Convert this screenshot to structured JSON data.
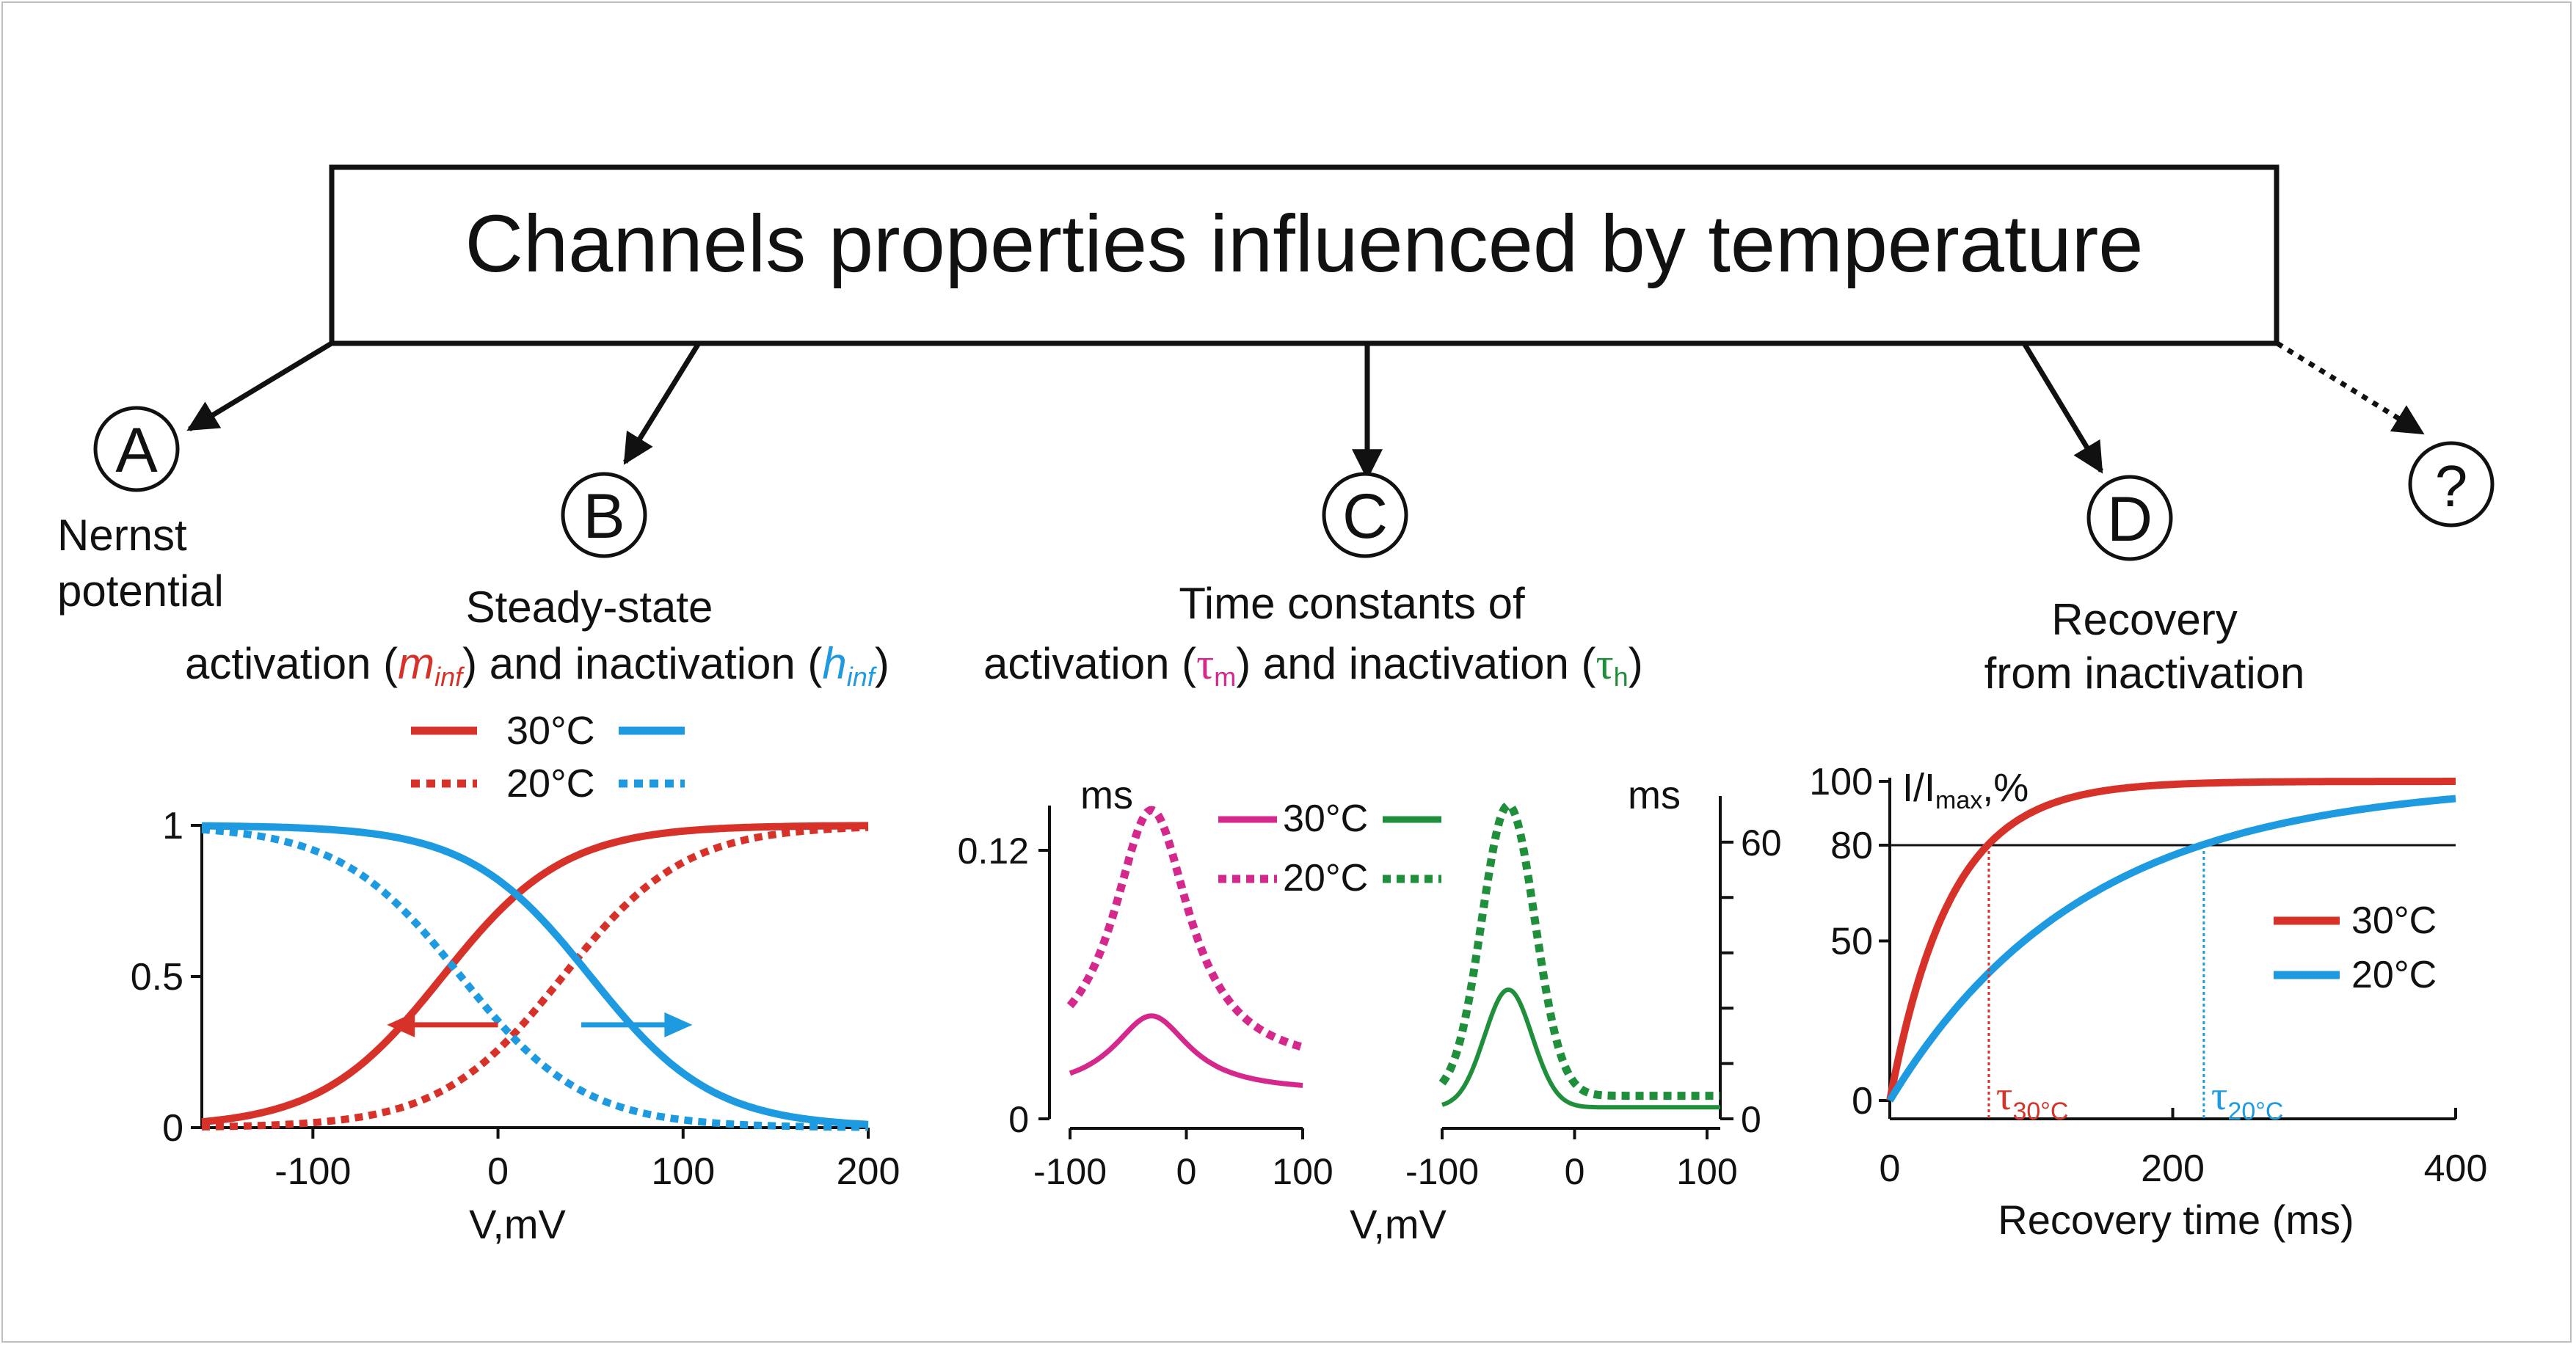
{
  "title": "Channels properties influenced by temperature",
  "colors": {
    "red": "#d7322a",
    "blue": "#1e9ae0",
    "magenta": "#d4288c",
    "green": "#1f8f3b",
    "black": "#111111"
  },
  "nodes": {
    "a": {
      "letter": "A",
      "line1": "Nernst",
      "line2": "potential"
    },
    "b": {
      "letter": "B",
      "line1": "Steady-state",
      "l2_p1": "activation (",
      "l2_sym1": "m",
      "l2_sub1": "inf",
      "l2_p2": ") and inactivation (",
      "l2_sym2": "h",
      "l2_sub2": "inf",
      "l2_p3": ")"
    },
    "c": {
      "letter": "C",
      "line1": "Time constants  of",
      "l2_p1": "activation (",
      "l2_sym1": "τ",
      "l2_sub1": "m",
      "l2_p2": ") and inactivation (",
      "l2_sym2": "τ",
      "l2_sub2": "h",
      "l2_p3": ")"
    },
    "d": {
      "letter": "D",
      "line1": "Recovery",
      "line2": "from inactivation"
    },
    "unknown": {
      "letter": "?"
    }
  },
  "legend_b": {
    "label_30": "30°C",
    "label_20": "20°C"
  },
  "legend_c": {
    "label_30": "30°C",
    "label_20": "20°C"
  },
  "legend_d": {
    "label_30": "30°C",
    "label_20": "20°C"
  },
  "chart_data": [
    {
      "type": "line",
      "panel": "B",
      "xlabel": "V,mV",
      "ylabel": "",
      "xlim": [
        -160,
        200
      ],
      "ylim": [
        0,
        1
      ],
      "x_ticks": [
        -100,
        0,
        100,
        200
      ],
      "x_tick_labels": [
        "-100",
        "0",
        "100",
        "200"
      ],
      "y_ticks": [
        0,
        0.5,
        1
      ],
      "y_tick_labels": [
        "0",
        "0.5",
        "1"
      ],
      "series": [
        {
          "kind": "activation",
          "temp": "30°C",
          "style": "solid",
          "color": "#d7322a",
          "v_half": -30,
          "slope": 33
        },
        {
          "kind": "activation",
          "temp": "20°C",
          "style": "dotted",
          "color": "#d7322a",
          "v_half": 35,
          "slope": 33
        },
        {
          "kind": "inactivation",
          "temp": "30°C",
          "style": "solid",
          "color": "#1e9ae0",
          "v_half": 50,
          "slope": -33
        },
        {
          "kind": "inactivation",
          "temp": "20°C",
          "style": "dotted",
          "color": "#1e9ae0",
          "v_half": -20,
          "slope": -33
        }
      ],
      "arrows": [
        {
          "color": "#d7322a",
          "from": [
            0,
            0.34
          ],
          "to": [
            -60,
            0.34
          ]
        },
        {
          "color": "#1e9ae0",
          "from": [
            45,
            0.34
          ],
          "to": [
            105,
            0.34
          ]
        }
      ]
    },
    {
      "type": "line",
      "panel": "C-left",
      "unit": "ms",
      "xlabel": "V,mV",
      "xlim": [
        -100,
        100
      ],
      "x_ticks": [
        -100,
        0,
        100
      ],
      "x_tick_labels": [
        "-100",
        "0",
        "100"
      ],
      "ylim": [
        0,
        0.14
      ],
      "y_ticks": [
        0,
        0.12
      ],
      "y_tick_labels": [
        "0",
        "0.12"
      ],
      "series": [
        {
          "temp": "30°C",
          "style": "solid",
          "color": "#d4288c",
          "peak_v": -30,
          "base": 0.012,
          "peak": 0.046,
          "width": 40
        },
        {
          "temp": "20°C",
          "style": "dotted",
          "color": "#d4288c",
          "peak_v": -30,
          "base": 0.022,
          "peak": 0.138,
          "width": 40
        }
      ]
    },
    {
      "type": "line",
      "panel": "C-right",
      "unit": "ms",
      "xlim": [
        -100,
        110
      ],
      "x_ticks": [
        -100,
        0,
        100
      ],
      "x_tick_labels": [
        "-100",
        "0",
        "100"
      ],
      "ylim": [
        0,
        70
      ],
      "y_ticks": [
        0,
        60
      ],
      "y_tick_labels": [
        "0",
        "60"
      ],
      "series": [
        {
          "temp": "30°C",
          "style": "solid",
          "color": "#1f8f3b",
          "peak_v": -50,
          "base": 2.5,
          "peak": 28,
          "width": 18
        },
        {
          "temp": "20°C",
          "style": "dotted",
          "color": "#1f8f3b",
          "peak_v": -50,
          "base": 5,
          "peak": 68,
          "width": 20
        }
      ]
    },
    {
      "type": "line",
      "panel": "D",
      "ylabel_main": "I/I",
      "ylabel_sub": "max",
      "ylabel_tail": ",%",
      "xlabel": "Recovery time (ms)",
      "xlim": [
        0,
        400
      ],
      "ylim": [
        0,
        100
      ],
      "x_ticks": [
        0,
        200,
        400
      ],
      "x_tick_labels": [
        "0",
        "200",
        "400"
      ],
      "y_ticks": [
        0,
        50,
        80,
        100
      ],
      "y_tick_labels": [
        "0",
        "50",
        "80",
        "100"
      ],
      "reference_line": 80,
      "series": [
        {
          "temp": "30°C",
          "style": "solid",
          "color": "#d7322a",
          "tau_ms": 43
        },
        {
          "temp": "20°C",
          "style": "solid",
          "color": "#1e9ae0",
          "tau_ms": 137
        }
      ],
      "markers": [
        {
          "label_main": "τ",
          "label_sub": "30°C",
          "color": "#d7322a",
          "x": 70
        },
        {
          "label_main": "τ",
          "label_sub": "20°C",
          "color": "#1e9ae0",
          "x": 222
        }
      ]
    }
  ]
}
